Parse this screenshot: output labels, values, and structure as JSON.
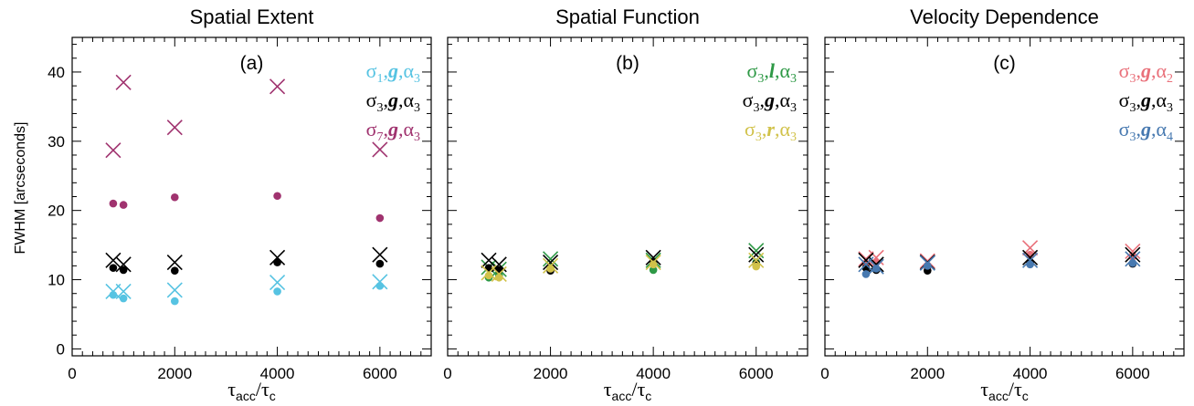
{
  "figure": {
    "ylabel": "FWHM [arcseconds]",
    "xlabel": {
      "a": "τ",
      "a_sub": "acc",
      "sep": "/",
      "b": "τ",
      "b_sub": "c"
    }
  },
  "chart_data": [
    {
      "type": "scatter",
      "title": "Spatial Extent",
      "panel_label": "(a)",
      "xlim": [
        0,
        7000
      ],
      "ylim": [
        -1,
        45
      ],
      "xticks": [
        0,
        2000,
        4000,
        6000
      ],
      "yticks": [
        0,
        10,
        20,
        30,
        40
      ],
      "legend": [
        {
          "sigma": "1",
          "func": "g",
          "alpha": "3",
          "color": "#56c3e2"
        },
        {
          "sigma": "3",
          "func": "g",
          "alpha": "3",
          "color": "#000000"
        },
        {
          "sigma": "7",
          "func": "g",
          "alpha": "3",
          "color": "#a0336f"
        }
      ],
      "series": [
        {
          "color": "#56c3e2",
          "x_marker": [
            [
              800,
              8.3
            ],
            [
              1000,
              8.3
            ],
            [
              2000,
              8.5
            ],
            [
              4000,
              9.6
            ],
            [
              6000,
              9.7
            ]
          ],
          "dot_marker": [
            [
              800,
              7.8
            ],
            [
              1000,
              7.3
            ],
            [
              2000,
              6.9
            ],
            [
              4000,
              8.3
            ],
            [
              6000,
              9.1
            ]
          ]
        },
        {
          "color": "#000000",
          "x_marker": [
            [
              800,
              12.8
            ],
            [
              1000,
              12.2
            ],
            [
              2000,
              12.5
            ],
            [
              4000,
              13.2
            ],
            [
              6000,
              13.6
            ]
          ],
          "dot_marker": [
            [
              800,
              11.7
            ],
            [
              1000,
              11.4
            ],
            [
              2000,
              11.3
            ],
            [
              4000,
              12.5
            ],
            [
              6000,
              12.3
            ]
          ]
        },
        {
          "color": "#a0336f",
          "x_marker": [
            [
              800,
              28.7
            ],
            [
              1000,
              38.5
            ],
            [
              2000,
              32.0
            ],
            [
              4000,
              37.9
            ],
            [
              6000,
              28.8
            ]
          ],
          "dot_marker": [
            [
              800,
              21.0
            ],
            [
              1000,
              20.8
            ],
            [
              2000,
              21.9
            ],
            [
              4000,
              22.1
            ],
            [
              6000,
              18.9
            ]
          ]
        }
      ]
    },
    {
      "type": "scatter",
      "title": "Spatial Function",
      "panel_label": "(b)",
      "xlim": [
        0,
        7000
      ],
      "ylim": [
        -1,
        45
      ],
      "xticks": [
        0,
        2000,
        4000,
        6000
      ],
      "yticks": [
        0,
        10,
        20,
        30,
        40
      ],
      "legend": [
        {
          "sigma": "3",
          "func": "l",
          "alpha": "3",
          "color": "#2e9946"
        },
        {
          "sigma": "3",
          "func": "g",
          "alpha": "3",
          "color": "#000000"
        },
        {
          "sigma": "3",
          "func": "r",
          "alpha": "3",
          "color": "#d1c24a"
        }
      ],
      "series": [
        {
          "color": "#2e9946",
          "x_marker": [
            [
              800,
              11.8
            ],
            [
              1000,
              11.5
            ],
            [
              2000,
              13.0
            ],
            [
              4000,
              12.8
            ],
            [
              6000,
              14.2
            ]
          ],
          "dot_marker": [
            [
              800,
              10.3
            ],
            [
              1000,
              10.6
            ],
            [
              2000,
              11.8
            ],
            [
              4000,
              11.4
            ],
            [
              6000,
              12.5
            ]
          ]
        },
        {
          "color": "#000000",
          "x_marker": [
            [
              800,
              12.8
            ],
            [
              1000,
              12.2
            ],
            [
              2000,
              12.5
            ],
            [
              4000,
              13.2
            ],
            [
              6000,
              13.6
            ]
          ],
          "dot_marker": [
            [
              800,
              11.7
            ],
            [
              1000,
              11.4
            ],
            [
              2000,
              11.3
            ],
            [
              4000,
              12.5
            ],
            [
              6000,
              12.3
            ]
          ]
        },
        {
          "color": "#d1c24a",
          "x_marker": [
            [
              800,
              11.0
            ],
            [
              1000,
              10.8
            ],
            [
              2000,
              12.0
            ],
            [
              4000,
              12.5
            ],
            [
              6000,
              12.8
            ]
          ],
          "dot_marker": [
            [
              800,
              10.6
            ],
            [
              1000,
              10.3
            ],
            [
              2000,
              11.6
            ],
            [
              4000,
              12.2
            ],
            [
              6000,
              11.9
            ]
          ]
        }
      ]
    },
    {
      "type": "scatter",
      "title": "Velocity Dependence",
      "panel_label": "(c)",
      "xlim": [
        0,
        7000
      ],
      "ylim": [
        -1,
        45
      ],
      "xticks": [
        0,
        2000,
        4000,
        6000
      ],
      "yticks": [
        0,
        10,
        20,
        30,
        40
      ],
      "legend": [
        {
          "sigma": "3",
          "func": "g",
          "alpha": "2",
          "color": "#e9707a"
        },
        {
          "sigma": "3",
          "func": "g",
          "alpha": "3",
          "color": "#000000"
        },
        {
          "sigma": "3",
          "func": "g",
          "alpha": "4",
          "color": "#4779b0"
        }
      ],
      "series": [
        {
          "color": "#e9707a",
          "x_marker": [
            [
              800,
              13.0
            ],
            [
              1000,
              13.2
            ],
            [
              2000,
              12.7
            ],
            [
              4000,
              14.6
            ],
            [
              6000,
              14.1
            ]
          ],
          "dot_marker": [
            [
              800,
              12.2
            ],
            [
              1000,
              12.5
            ],
            [
              2000,
              11.8
            ],
            [
              4000,
              13.6
            ],
            [
              6000,
              13.3
            ]
          ]
        },
        {
          "color": "#000000",
          "x_marker": [
            [
              800,
              12.8
            ],
            [
              1000,
              12.2
            ],
            [
              2000,
              12.5
            ],
            [
              4000,
              13.2
            ],
            [
              6000,
              13.6
            ]
          ],
          "dot_marker": [
            [
              800,
              11.7
            ],
            [
              1000,
              11.4
            ],
            [
              2000,
              11.3
            ],
            [
              4000,
              12.5
            ],
            [
              6000,
              12.3
            ]
          ]
        },
        {
          "color": "#4779b0",
          "x_marker": [
            [
              800,
              12.2
            ],
            [
              1000,
              11.9
            ],
            [
              2000,
              12.4
            ],
            [
              4000,
              12.8
            ],
            [
              6000,
              13.0
            ]
          ],
          "dot_marker": [
            [
              800,
              10.8
            ],
            [
              1000,
              11.6
            ],
            [
              2000,
              12.0
            ],
            [
              4000,
              12.2
            ],
            [
              6000,
              12.4
            ]
          ]
        }
      ]
    }
  ]
}
